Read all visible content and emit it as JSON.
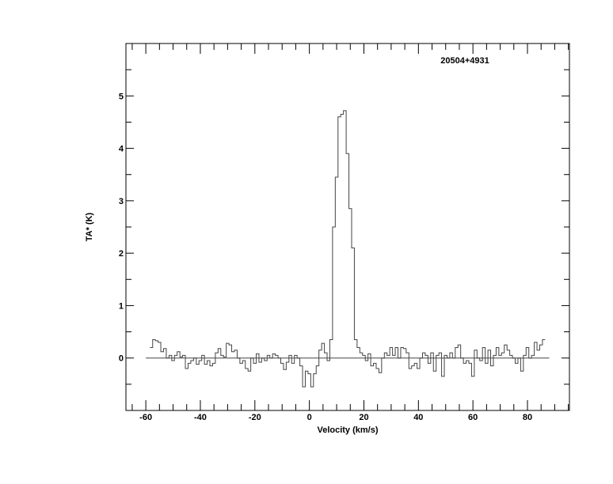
{
  "chart_data": {
    "type": "line",
    "style": "histogram-step",
    "title": "20504+4931",
    "xlabel": "Velocity (km/s)",
    "ylabel": "TA* (K)",
    "xlim": [
      -67.3,
      95.4
    ],
    "ylim": [
      -1,
      6
    ],
    "xticks": [
      -60,
      -40,
      -20,
      0,
      20,
      40,
      60,
      80
    ],
    "yticks": [
      0,
      1,
      2,
      3,
      4,
      5
    ],
    "grid": false,
    "baseline": 0,
    "colors": {
      "line": "#444444",
      "axis": "#000000"
    },
    "series": [
      {
        "x": [
          -58,
          -57,
          -56,
          -55,
          -54,
          -53,
          -52,
          -51,
          -50,
          -49,
          -48,
          -47,
          -46,
          -45,
          -44,
          -43,
          -42,
          -41,
          -40,
          -39,
          -38,
          -37,
          -36,
          -35,
          -34,
          -33,
          -32,
          -31,
          -30,
          -29,
          -28,
          -27,
          -26,
          -25,
          -24,
          -23,
          -22,
          -21,
          -20,
          -19,
          -18,
          -17,
          -16,
          -15,
          -14,
          -13,
          -12,
          -11,
          -10,
          -9,
          -8,
          -7,
          -6,
          -5,
          -4,
          -3,
          -2,
          -1,
          0,
          1,
          2,
          3,
          4,
          5,
          6,
          7,
          8,
          9,
          10,
          11,
          12,
          13,
          14,
          15,
          16,
          17,
          18,
          19,
          20,
          21,
          22,
          23,
          24,
          25,
          26,
          27,
          28,
          29,
          30,
          31,
          32,
          33,
          34,
          35,
          36,
          37,
          38,
          39,
          40,
          41,
          42,
          43,
          44,
          45,
          46,
          47,
          48,
          49,
          50,
          51,
          52,
          53,
          54,
          55,
          56,
          57,
          58,
          59,
          60,
          61,
          62,
          63,
          64,
          65,
          66,
          67,
          68,
          69,
          70,
          71,
          72,
          73,
          74,
          75,
          76,
          77,
          78,
          79,
          80,
          81,
          82,
          83,
          84,
          85,
          86
        ],
        "y": [
          0.2,
          0.35,
          0.33,
          0.3,
          0.12,
          0.18,
          0.0,
          0.05,
          -0.05,
          0.05,
          0.12,
          0.02,
          0.05,
          -0.2,
          -0.1,
          -0.05,
          0.0,
          -0.12,
          -0.05,
          0.05,
          -0.12,
          -0.05,
          -0.15,
          -0.1,
          0.1,
          0.18,
          0.05,
          0.02,
          0.28,
          0.25,
          0.12,
          0.15,
          0.0,
          -0.1,
          -0.05,
          -0.2,
          -0.25,
          0.0,
          -0.1,
          0.08,
          -0.08,
          0.0,
          -0.05,
          0.05,
          0.0,
          0.08,
          0.05,
          0.0,
          -0.1,
          -0.22,
          -0.08,
          0.05,
          -0.1,
          0.05,
          0.0,
          -0.15,
          -0.55,
          -0.25,
          -0.3,
          -0.55,
          -0.3,
          -0.15,
          0.15,
          0.28,
          0.1,
          -0.05,
          0.35,
          2.5,
          3.45,
          4.6,
          4.65,
          4.72,
          3.9,
          2.85,
          2.1,
          0.35,
          0.2,
          0.1,
          0.05,
          -0.05,
          0.08,
          -0.15,
          -0.1,
          -0.2,
          -0.28,
          0.0,
          0.1,
          0.05,
          0.2,
          0.05,
          0.2,
          0.0,
          0.2,
          0.18,
          0.1,
          -0.2,
          -0.15,
          -0.1,
          -0.2,
          0.0,
          0.1,
          0.05,
          -0.1,
          0.1,
          -0.25,
          0.05,
          0.1,
          -0.35,
          0.05,
          0.0,
          0.1,
          0.0,
          0.2,
          0.25,
          0.0,
          -0.1,
          -0.05,
          -0.1,
          -0.35,
          0.15,
          0.0,
          -0.05,
          0.2,
          -0.1,
          0.15,
          -0.15,
          0.05,
          0.2,
          0.05,
          0.1,
          0.25,
          0.15,
          0.05,
          0.0,
          -0.1,
          0.0,
          -0.25,
          0.05,
          0.2,
          0.0,
          0.05,
          0.3,
          0.15,
          0.25,
          0.35
        ]
      }
    ]
  }
}
